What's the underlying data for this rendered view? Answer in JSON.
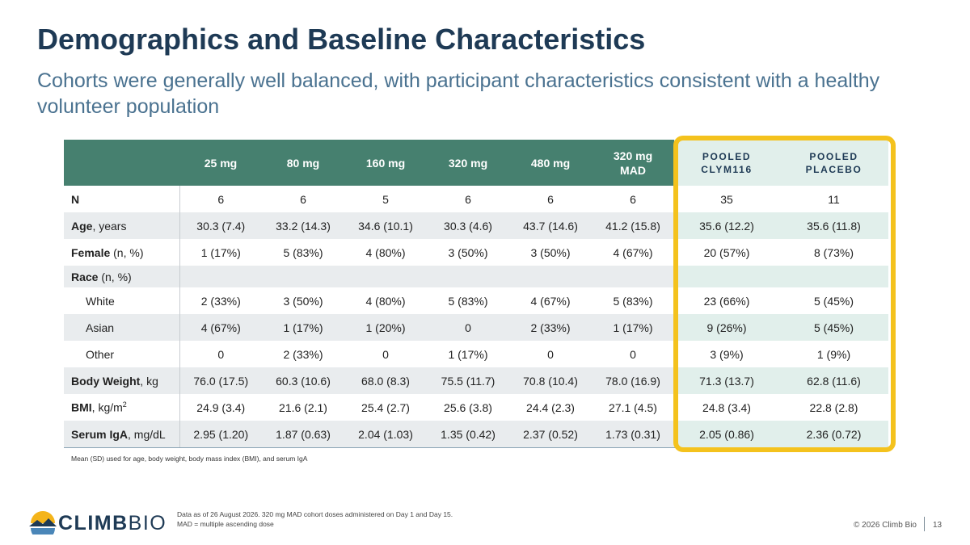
{
  "slide": {
    "title": "Demographics and Baseline Characteristics",
    "subtitle": "Cohorts were generally well balanced, with participant characteristics consistent with a healthy volunteer population"
  },
  "table": {
    "headers": [
      "",
      "25 mg",
      "80 mg",
      "160 mg",
      "320 mg",
      "480 mg",
      "320 mg MAD",
      "POOLED CLYM116",
      "POOLED PLACEBO"
    ],
    "header_lines": {
      "mad_1": "320 mg",
      "mad_2": "MAD",
      "pooled_clym_1": "POOLED",
      "pooled_clym_2": "CLYM116",
      "pooled_placebo_1": "POOLED",
      "pooled_placebo_2": "PLACEBO"
    },
    "rows": [
      {
        "label_bold": "N",
        "label_rest": "",
        "values": [
          "6",
          "6",
          "5",
          "6",
          "6",
          "6",
          "35",
          "11"
        ]
      },
      {
        "label_bold": "Age",
        "label_rest": ", years",
        "values": [
          "30.3 (7.4)",
          "33.2 (14.3)",
          "34.6 (10.1)",
          "30.3 (4.6)",
          "43.7 (14.6)",
          "41.2 (15.8)",
          "35.6 (12.2)",
          "35.6 (11.8)"
        ]
      },
      {
        "label_bold": "Female",
        "label_rest": " (n, %)",
        "values": [
          "1 (17%)",
          "5 (83%)",
          "4 (80%)",
          "3 (50%)",
          "3 (50%)",
          "4 (67%)",
          "20 (57%)",
          "8 (73%)"
        ]
      },
      {
        "label_bold": "Race",
        "label_rest": " (n, %)",
        "values": [
          "",
          "",
          "",
          "",
          "",
          "",
          "",
          ""
        ]
      },
      {
        "label_bold": "",
        "label_rest": "White",
        "values": [
          "2 (33%)",
          "3 (50%)",
          "4 (80%)",
          "5 (83%)",
          "4 (67%)",
          "5 (83%)",
          "23 (66%)",
          "5 (45%)"
        ]
      },
      {
        "label_bold": "",
        "label_rest": "Asian",
        "values": [
          "4 (67%)",
          "1 (17%)",
          "1 (20%)",
          "0",
          "2 (33%)",
          "1 (17%)",
          "9 (26%)",
          "5 (45%)"
        ]
      },
      {
        "label_bold": "",
        "label_rest": "Other",
        "values": [
          "0",
          "2 (33%)",
          "0",
          "1 (17%)",
          "0",
          "0",
          "3 (9%)",
          "1 (9%)"
        ]
      },
      {
        "label_bold": "Body Weight",
        "label_rest": ", kg",
        "values": [
          "76.0 (17.5)",
          "60.3 (10.6)",
          "68.0 (8.3)",
          "75.5 (11.7)",
          "70.8 (10.4)",
          "78.0 (16.9)",
          "71.3 (13.7)",
          "62.8 (11.6)"
        ]
      },
      {
        "label_bold": "BMI",
        "label_rest": ", kg/m",
        "label_sup": "2",
        "values": [
          "24.9 (3.4)",
          "21.6 (2.1)",
          "25.4 (2.7)",
          "25.6 (3.8)",
          "24.4 (2.3)",
          "27.1 (4.5)",
          "24.8 (3.4)",
          "22.8 (2.8)"
        ]
      },
      {
        "label_bold": "Serum IgA",
        "label_rest": ", mg/dL",
        "values": [
          "2.95 (1.20)",
          "1.87 (0.63)",
          "2.04 (1.03)",
          "1.35 (0.42)",
          "2.37 (0.52)",
          "1.73 (0.31)",
          "2.05 (0.86)",
          "2.36 (0.72)"
        ]
      }
    ]
  },
  "footnote": "Mean (SD) used for age, body weight, body mass index (BMI), and serum IgA",
  "footer": {
    "logo_part1": "CLIMB",
    "logo_part2": "BIO",
    "source_line1": "Data as of 26 August 2026. 320 mg MAD cohort doses administered on Day 1 and Day 15.",
    "source_line2": "MAD = multiple ascending dose",
    "copyright": "© 2026 Climb Bio",
    "page_number": "13"
  },
  "colors": {
    "title": "#1e3a55",
    "subtitle": "#4a7290",
    "header_green": "#46806f",
    "pooled_tint": "#e1efeb",
    "highlight": "#f4c21d"
  },
  "icons": [
    "climbbio-logo-icon"
  ]
}
